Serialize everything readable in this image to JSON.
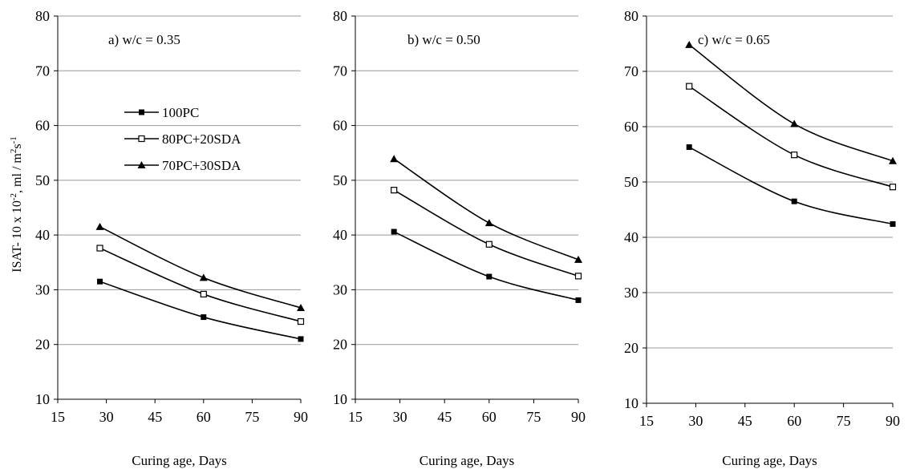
{
  "figure": {
    "ylabel": "ISAT- 10 x 10",
    "ylabel_exp": "-2",
    "ylabel_unit": ",   ml / m",
    "ylabel_unit_sq": "2",
    "ylabel_unit_s": "s",
    "ylabel_unit_exp": "-1"
  },
  "chart_data": [
    {
      "type": "line",
      "annotation": "a)  w/c = 0.35",
      "xlabel": "Curing age,    Days",
      "xlim": [
        15,
        90
      ],
      "xticks": [
        15,
        30,
        45,
        60,
        75,
        90
      ],
      "ylim": [
        10,
        80
      ],
      "yticks": [
        10,
        20,
        30,
        40,
        50,
        60,
        70,
        80
      ],
      "grid": "horizontal",
      "legend": "upper-left",
      "x": [
        28,
        60,
        90
      ],
      "series": [
        {
          "name": "100PC",
          "marker": "filled-square",
          "values": [
            31.5,
            25,
            21
          ]
        },
        {
          "name": "80PC+20SDA",
          "marker": "open-square",
          "values": [
            37.6,
            29.2,
            24.2
          ]
        },
        {
          "name": "70PC+30SDA",
          "marker": "filled-triangle",
          "values": [
            41.5,
            32.2,
            26.7
          ]
        }
      ]
    },
    {
      "type": "line",
      "annotation": "b)  w/c = 0.50",
      "xlabel": "Curing age,    Days",
      "xlim": [
        15,
        90
      ],
      "xticks": [
        15,
        30,
        45,
        60,
        75,
        90
      ],
      "ylim": [
        10,
        80
      ],
      "yticks": [
        10,
        20,
        30,
        40,
        50,
        60,
        70,
        80
      ],
      "grid": "horizontal",
      "x": [
        28,
        60,
        90
      ],
      "series": [
        {
          "name": "100PC",
          "marker": "filled-square",
          "values": [
            40.6,
            32.4,
            28.1
          ]
        },
        {
          "name": "80PC+20SDA",
          "marker": "open-square",
          "values": [
            48.2,
            38.3,
            32.5
          ]
        },
        {
          "name": "70PC+30SDA",
          "marker": "filled-triangle",
          "values": [
            53.9,
            42.2,
            35.5
          ]
        }
      ]
    },
    {
      "type": "line",
      "annotation": "c)  w/c =  0.65",
      "xlabel": "Curing age,    Days",
      "xlim": [
        15,
        90
      ],
      "xticks": [
        15,
        30,
        45,
        60,
        75,
        90
      ],
      "ylim": [
        10,
        80
      ],
      "yticks": [
        10,
        20,
        30,
        40,
        50,
        60,
        70,
        80
      ],
      "grid": "horizontal",
      "x": [
        28,
        60,
        90
      ],
      "series": [
        {
          "name": "100PC",
          "marker": "filled-square",
          "values": [
            56.3,
            46.5,
            42.4
          ]
        },
        {
          "name": "80PC+20SDA",
          "marker": "open-square",
          "values": [
            67.3,
            54.9,
            49.1
          ]
        },
        {
          "name": "70PC+30SDA",
          "marker": "filled-triangle",
          "values": [
            74.8,
            60.5,
            53.8
          ]
        }
      ]
    }
  ]
}
